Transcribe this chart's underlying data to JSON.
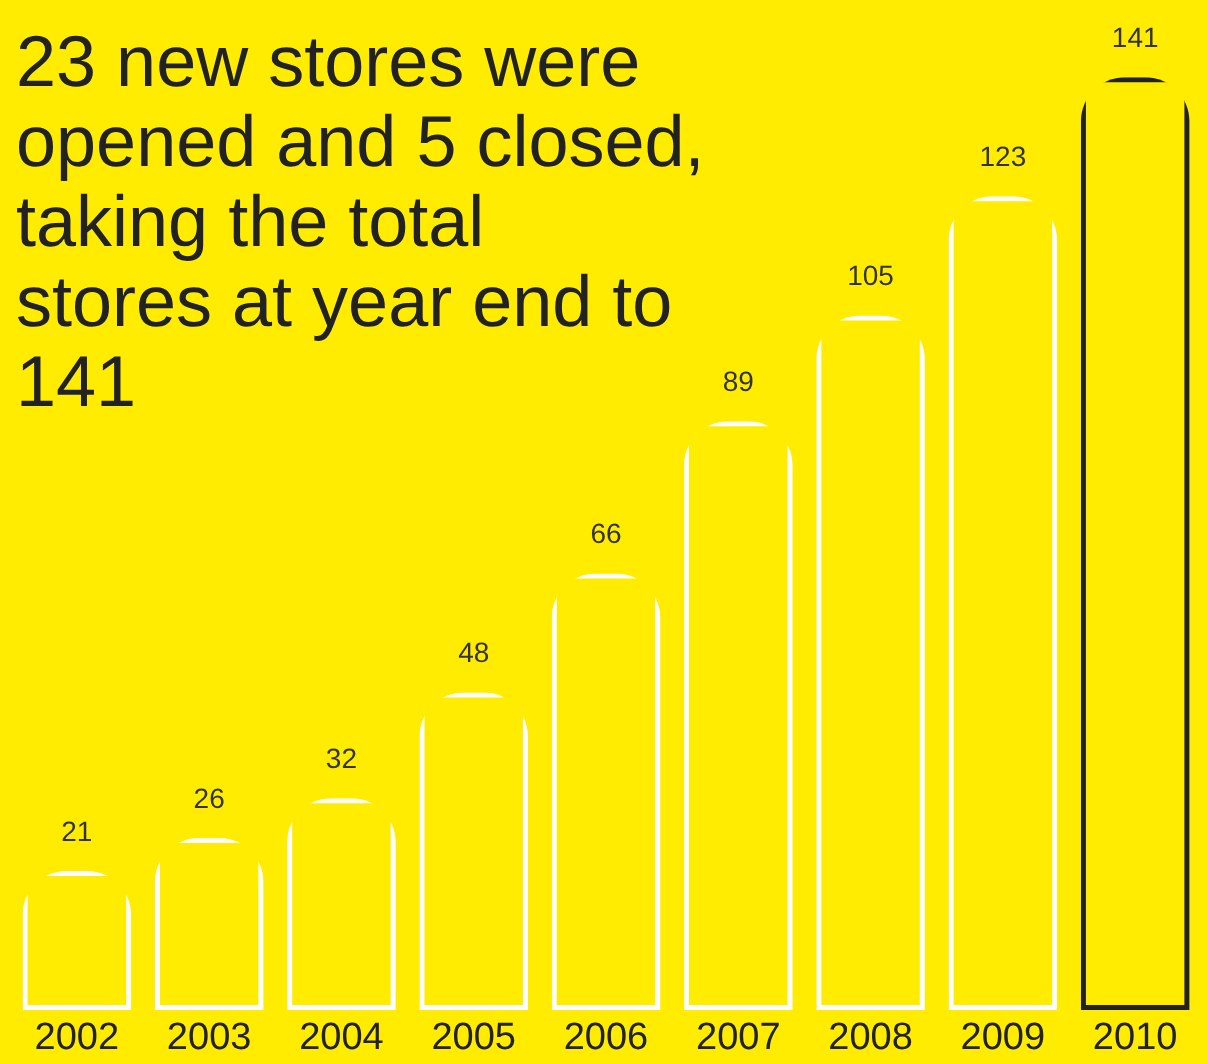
{
  "chart_data": {
    "type": "bar",
    "title": "23 new stores were opened and 5 closed, taking the total stores at year end to 141",
    "categories": [
      "2002",
      "2003",
      "2004",
      "2005",
      "2006",
      "2007",
      "2008",
      "2009",
      "2010"
    ],
    "values": [
      21,
      26,
      32,
      48,
      66,
      89,
      105,
      123,
      141
    ],
    "colors": [
      "#ffffff",
      "#ffffff",
      "#ffffff",
      "#ffffff",
      "#ffffff",
      "#ffffff",
      "#ffffff",
      "#ffffff",
      "#222222"
    ],
    "data_labels": true
  }
}
